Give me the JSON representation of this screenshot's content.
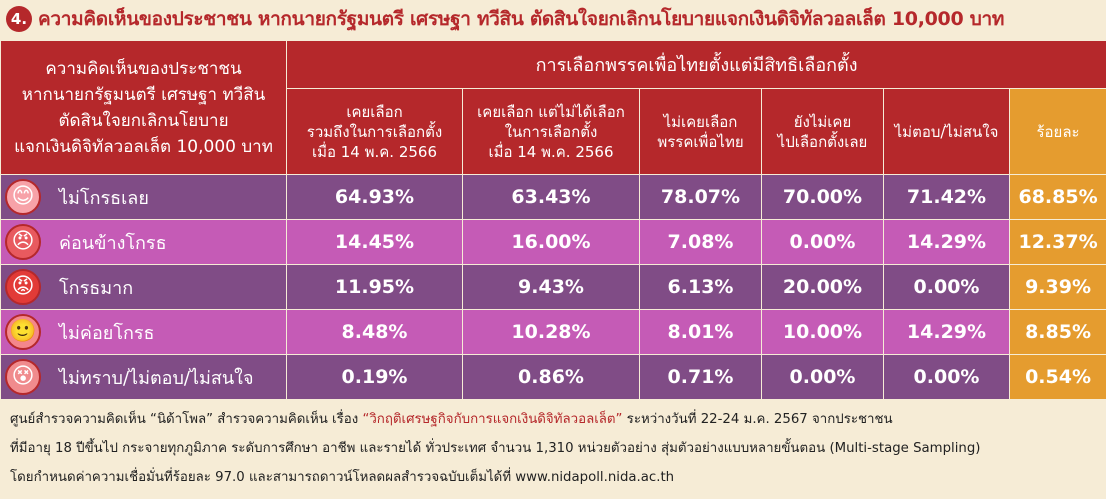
{
  "title": {
    "number": "4.",
    "text": "ความคิดเห็นของประชาชน หากนายกรัฐมนตรี เศรษฐา ทวีสิน ตัดสินใจยกเลิกนโยบายแจกเงินดิจิทัลวอลเล็ต 10,000 บาท"
  },
  "table": {
    "corner": [
      "ความคิดเห็นของประชาชน",
      "หากนายกรัฐมนตรี เศรษฐา ทวีสิน",
      "ตัดสินใจยกเลิกนโยบาย",
      "แจกเงินดิจิทัลวอลเล็ต 10,000 บาท"
    ],
    "group_header": "การเลือกพรรคเพื่อไทยตั้งแต่มีสิทธิเลือกตั้ง",
    "columns": [
      [
        "เคยเลือก",
        "รวมถึงในการเลือกตั้ง",
        "เมื่อ 14 พ.ค. 2566"
      ],
      [
        "เคยเลือก แต่ไม่ได้เลือก",
        "ในการเลือกตั้ง",
        "เมื่อ 14 พ.ค. 2566"
      ],
      [
        "ไม่เคยเลือก",
        "พรรคเพื่อไทย"
      ],
      [
        "ยังไม่เคย",
        "ไปเลือกตั้งเลย"
      ],
      [
        "ไม่ตอบ/ไม่สนใจ"
      ],
      [
        "ร้อยละ"
      ]
    ],
    "rows": [
      {
        "label": "ไม่โกรธเลย",
        "icon": "happy-face-icon",
        "face": "😊",
        "values": [
          "64.93%",
          "63.43%",
          "78.07%",
          "70.00%",
          "71.42%",
          "68.85%"
        ]
      },
      {
        "label": "ค่อนข้างโกรธ",
        "icon": "angry-face-icon",
        "face": "😠",
        "values": [
          "14.45%",
          "16.00%",
          "7.08%",
          "0.00%",
          "14.29%",
          "12.37%"
        ]
      },
      {
        "label": "โกรธมาก",
        "icon": "furious-face-icon",
        "face": "😡",
        "values": [
          "11.95%",
          "9.43%",
          "6.13%",
          "20.00%",
          "0.00%",
          "9.39%"
        ]
      },
      {
        "label": "ไม่ค่อยโกรธ",
        "icon": "mild-face-icon",
        "face": "🙂",
        "values": [
          "8.48%",
          "10.28%",
          "8.01%",
          "10.00%",
          "14.29%",
          "8.85%"
        ]
      },
      {
        "label": "ไม่ทราบ/ไม่ตอบ/ไม่สนใจ",
        "icon": "unsure-face-icon",
        "face": "😵",
        "values": [
          "0.19%",
          "0.86%",
          "0.71%",
          "0.00%",
          "0.00%",
          "0.54%"
        ]
      }
    ]
  },
  "footer": {
    "part1": "ศูนย์สำรวจความคิดเห็น “นิด้าโพล” สำรวจความคิดเห็น เรื่อง ",
    "link": "“วิกฤติเศรษฐกิจกับการแจกเงินดิจิทัลวอลเล็ต”",
    "part2": " ระหว่างวันที่ 22-24 ม.ค. 2567 จากประชาชน",
    "line2": "ที่มีอายุ 18 ปีขึ้นไป กระจายทุกภูมิภาค ระดับการศึกษา อาชีพ และรายได้ ทั่วประเทศ จำนวน 1,310 หน่วยตัวอย่าง สุ่มตัวอย่างแบบหลายขั้นตอน (Multi-stage Sampling)",
    "line3": "โดยกำหนดค่าความเชื่อมั่นที่ร้อยละ 97.0 และสามารถดาวน์โหลดผลสำรวจฉบับเต็มได้ที่ www.nidapoll.nida.ac.th"
  },
  "colors": {
    "header_red": "#b5282b",
    "percent_orange": "#e59c2f",
    "row_purple": "#804c86",
    "row_pink": "#c55bb6",
    "background": "#f6ecd6"
  }
}
